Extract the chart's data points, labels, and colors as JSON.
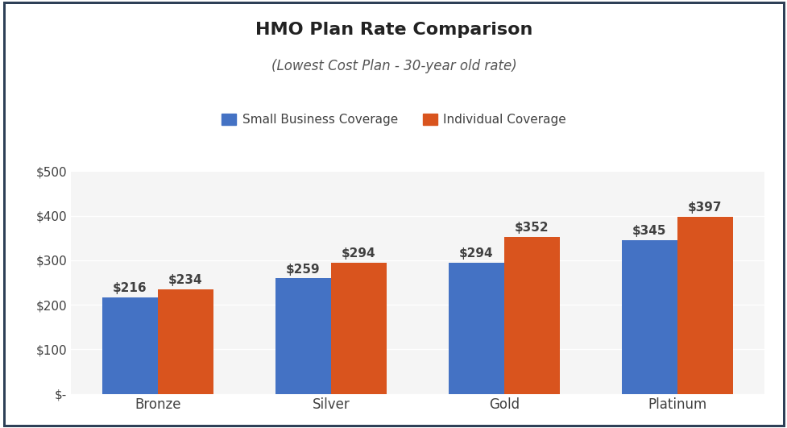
{
  "title": "HMO Plan Rate Comparison",
  "subtitle": "(Lowest Cost Plan - 30-year old rate)",
  "categories": [
    "Bronze",
    "Silver",
    "Gold",
    "Platinum"
  ],
  "small_business": [
    216,
    259,
    294,
    345
  ],
  "individual": [
    234,
    294,
    352,
    397
  ],
  "small_business_color": "#4472C4",
  "individual_color": "#D9541E",
  "legend_labels": [
    "Small Business Coverage",
    "Individual Coverage"
  ],
  "ylim": [
    0,
    500
  ],
  "yticks": [
    0,
    100,
    200,
    300,
    400,
    500
  ],
  "ytick_labels": [
    "$-",
    "$100",
    "$200",
    "$300",
    "$400",
    "$500"
  ],
  "bar_width": 0.32,
  "background_color": "#FFFFFF",
  "chart_bg_color": "#F5F5F5",
  "title_fontsize": 16,
  "subtitle_fontsize": 12,
  "tick_fontsize": 11,
  "annotation_fontsize": 11,
  "legend_fontsize": 11,
  "grid_color": "#FFFFFF",
  "text_color": "#404040",
  "border_color": "#2E4057"
}
